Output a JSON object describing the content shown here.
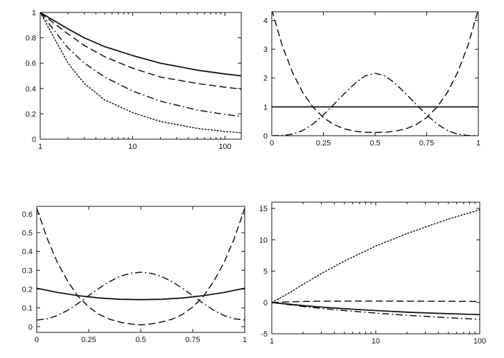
{
  "chart_data": [
    {
      "type": "line",
      "x_scale": "log",
      "xlim": [
        1,
        150
      ],
      "ylim": [
        0,
        1
      ],
      "x_ticks": [
        1,
        10,
        100
      ],
      "x_tick_labels": [
        "1",
        "10",
        "100"
      ],
      "y_ticks": [
        0,
        0.2,
        0.4,
        0.6,
        0.8,
        1
      ],
      "y_tick_labels": [
        "0",
        "0.2",
        "0.4",
        "0.6",
        "0.8",
        "1"
      ],
      "grid": false,
      "series": [
        {
          "style": "solid",
          "x": [
            1,
            2,
            3,
            5,
            10,
            20,
            50,
            100,
            150
          ],
          "values": [
            1,
            0.87,
            0.8,
            0.73,
            0.66,
            0.6,
            0.545,
            0.515,
            0.5
          ]
        },
        {
          "style": "dashed",
          "x": [
            1,
            2,
            3,
            5,
            10,
            20,
            50,
            100,
            150
          ],
          "values": [
            1,
            0.83,
            0.74,
            0.65,
            0.56,
            0.49,
            0.44,
            0.41,
            0.395
          ]
        },
        {
          "style": "dashdot",
          "x": [
            1,
            2,
            3,
            5,
            10,
            20,
            50,
            100,
            150
          ],
          "values": [
            1,
            0.72,
            0.6,
            0.49,
            0.38,
            0.3,
            0.23,
            0.195,
            0.18
          ]
        },
        {
          "style": "dotted",
          "x": [
            1,
            2,
            3,
            5,
            10,
            20,
            50,
            100,
            150
          ],
          "values": [
            1,
            0.6,
            0.44,
            0.31,
            0.21,
            0.14,
            0.085,
            0.06,
            0.05
          ]
        }
      ]
    },
    {
      "type": "line",
      "x_scale": "linear",
      "xlim": [
        0,
        1
      ],
      "ylim": [
        0,
        4.3
      ],
      "x_ticks": [
        0,
        0.25,
        0.5,
        0.75,
        1
      ],
      "x_tick_labels": [
        "0",
        "0.25",
        "0.5",
        "0.75",
        "1"
      ],
      "y_ticks": [
        0,
        1,
        2,
        3,
        4
      ],
      "y_tick_labels": [
        "0",
        "1",
        "2",
        "3",
        "4"
      ],
      "grid": false,
      "series": [
        {
          "style": "solid",
          "x": [
            0,
            1
          ],
          "values": [
            1,
            1
          ]
        },
        {
          "style": "dashed",
          "x": [
            0,
            0.05,
            0.1,
            0.15,
            0.2,
            0.25,
            0.3,
            0.35,
            0.4,
            0.45,
            0.5,
            0.55,
            0.6,
            0.65,
            0.7,
            0.75,
            0.8,
            0.85,
            0.9,
            0.95,
            1
          ],
          "values": [
            4.38,
            3.14,
            2.2,
            1.5,
            0.99,
            0.63,
            0.39,
            0.24,
            0.16,
            0.12,
            0.11,
            0.12,
            0.16,
            0.24,
            0.39,
            0.63,
            0.99,
            1.5,
            2.2,
            3.14,
            4.38
          ]
        },
        {
          "style": "dashdot",
          "x": [
            0,
            0.05,
            0.1,
            0.15,
            0.2,
            0.25,
            0.3,
            0.35,
            0.4,
            0.45,
            0.5,
            0.55,
            0.6,
            0.65,
            0.7,
            0.75,
            0.8,
            0.85,
            0.9,
            0.95,
            1
          ],
          "values": [
            0,
            0.01,
            0.05,
            0.18,
            0.41,
            0.72,
            1.08,
            1.45,
            1.8,
            2.07,
            2.17,
            2.07,
            1.8,
            1.45,
            1.08,
            0.72,
            0.41,
            0.18,
            0.05,
            0.01,
            0
          ]
        }
      ]
    },
    {
      "type": "line",
      "x_scale": "linear",
      "xlim": [
        0,
        1
      ],
      "ylim": [
        -0.03,
        0.64
      ],
      "x_ticks": [
        0,
        0.25,
        0.5,
        0.75,
        1
      ],
      "x_tick_labels": [
        "0",
        "0.25",
        "0.5",
        "0.75",
        "1"
      ],
      "y_ticks": [
        0,
        0.1,
        0.2,
        0.3,
        0.4,
        0.5,
        0.6
      ],
      "y_tick_labels": [
        "0",
        "0.1",
        "0.2",
        "0.3",
        "0.4",
        "0.5",
        "0.6"
      ],
      "grid": false,
      "series": [
        {
          "style": "solid",
          "x": [
            0,
            0.1,
            0.2,
            0.3,
            0.4,
            0.5,
            0.6,
            0.7,
            0.8,
            0.9,
            1
          ],
          "values": [
            0.205,
            0.182,
            0.165,
            0.153,
            0.146,
            0.144,
            0.146,
            0.153,
            0.165,
            0.182,
            0.205
          ]
        },
        {
          "style": "dashed",
          "x": [
            0,
            0.05,
            0.1,
            0.15,
            0.2,
            0.25,
            0.3,
            0.35,
            0.4,
            0.45,
            0.5,
            0.55,
            0.6,
            0.65,
            0.7,
            0.75,
            0.8,
            0.85,
            0.9,
            0.95,
            1
          ],
          "values": [
            0.63,
            0.47,
            0.34,
            0.24,
            0.16,
            0.105,
            0.065,
            0.04,
            0.025,
            0.015,
            0.01,
            0.015,
            0.025,
            0.04,
            0.065,
            0.105,
            0.16,
            0.24,
            0.34,
            0.47,
            0.63
          ]
        },
        {
          "style": "dashdot",
          "x": [
            0,
            0.05,
            0.1,
            0.15,
            0.2,
            0.25,
            0.3,
            0.35,
            0.4,
            0.45,
            0.5,
            0.55,
            0.6,
            0.65,
            0.7,
            0.75,
            0.8,
            0.85,
            0.9,
            0.95,
            1
          ],
          "values": [
            0.035,
            0.042,
            0.06,
            0.088,
            0.125,
            0.165,
            0.205,
            0.24,
            0.268,
            0.284,
            0.29,
            0.284,
            0.268,
            0.24,
            0.205,
            0.165,
            0.125,
            0.088,
            0.06,
            0.042,
            0.035
          ]
        }
      ]
    },
    {
      "type": "line",
      "x_scale": "log",
      "xlim": [
        1,
        100
      ],
      "ylim": [
        -5,
        16
      ],
      "x_ticks": [
        1,
        10,
        100
      ],
      "x_tick_labels": [
        "1",
        "10",
        "100"
      ],
      "y_ticks": [
        -5,
        0,
        5,
        10,
        15
      ],
      "y_tick_labels": [
        "-5",
        "0",
        "5",
        "10",
        "15"
      ],
      "grid": false,
      "series": [
        {
          "style": "dotted",
          "x": [
            1,
            1.5,
            2,
            3,
            5,
            10,
            20,
            50,
            100
          ],
          "values": [
            0,
            1.6,
            2.9,
            4.6,
            6.6,
            9.0,
            11.0,
            13.3,
            14.8
          ]
        },
        {
          "style": "dashed",
          "x": [
            1,
            1.5,
            2,
            3,
            5,
            10,
            20,
            50,
            100
          ],
          "values": [
            0,
            0.1,
            0.15,
            0.2,
            0.22,
            0.22,
            0.2,
            0.18,
            0.15
          ]
        },
        {
          "style": "solid",
          "x": [
            1,
            2,
            3,
            5,
            10,
            20,
            50,
            100
          ],
          "values": [
            0,
            -0.5,
            -0.75,
            -1.0,
            -1.3,
            -1.55,
            -1.8,
            -1.95
          ]
        },
        {
          "style": "dashdot",
          "x": [
            1,
            2,
            3,
            5,
            10,
            20,
            50,
            100
          ],
          "values": [
            0,
            -0.65,
            -0.95,
            -1.3,
            -1.7,
            -2.05,
            -2.45,
            -2.7
          ]
        }
      ]
    }
  ]
}
